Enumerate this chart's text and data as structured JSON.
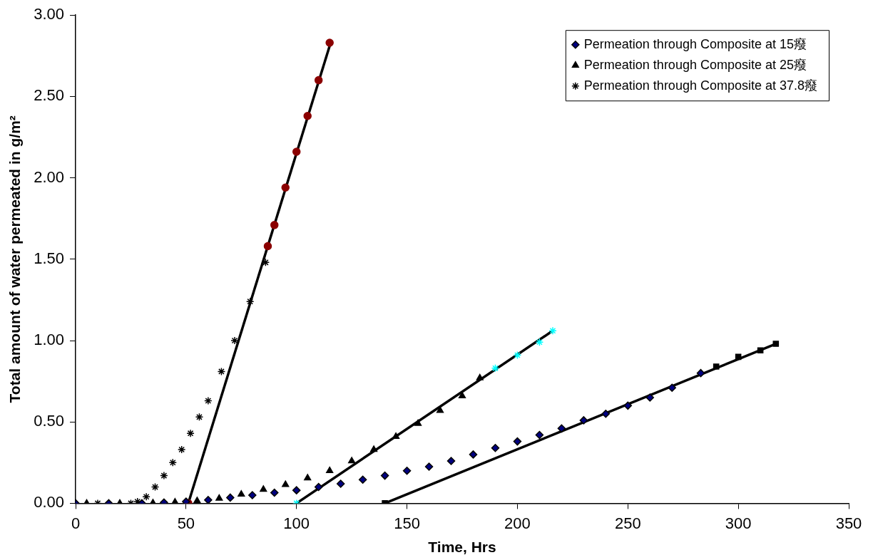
{
  "chart_data": {
    "type": "scatter",
    "xlabel": "Time, Hrs",
    "ylabel": "Total amount of water permeated in g/m²",
    "xlim": [
      0,
      350
    ],
    "xticks": [
      0,
      50,
      100,
      150,
      200,
      250,
      300,
      350
    ],
    "ylim": [
      0,
      3
    ],
    "yticks": [
      {
        "value": 0,
        "label": "0.00"
      },
      {
        "value": 0.5,
        "label": "0.50"
      },
      {
        "value": 1,
        "label": "1.00"
      },
      {
        "value": 1.5,
        "label": "1.50"
      },
      {
        "value": 2,
        "label": "2.00"
      },
      {
        "value": 2.5,
        "label": "2.50"
      },
      {
        "value": 3,
        "label": "3.00"
      }
    ],
    "grid": false,
    "legend": "top right",
    "series": [
      {
        "name": "Permeation through Composite at 15癈",
        "type": "scatter",
        "marker": "diamond",
        "color": "#000080",
        "x": [
          0,
          15,
          30,
          40,
          50,
          60,
          70,
          80,
          90,
          100,
          110,
          120,
          130,
          140,
          150,
          160,
          170,
          180,
          190,
          200,
          210,
          220,
          230,
          240,
          250,
          260,
          270,
          283
        ],
        "values": [
          0,
          0,
          0,
          0.005,
          0.01,
          0.02,
          0.035,
          0.05,
          0.065,
          0.08,
          0.1,
          0.12,
          0.145,
          0.17,
          0.2,
          0.225,
          0.26,
          0.3,
          0.34,
          0.38,
          0.42,
          0.46,
          0.51,
          0.55,
          0.6,
          0.65,
          0.71,
          0.8
        ]
      },
      {
        "name": "Permeation through Composite at 25癈",
        "type": "scatter",
        "marker": "triangle",
        "color": "#000000",
        "x": [
          5,
          20,
          35,
          45,
          55,
          65,
          75,
          85,
          95,
          105,
          115,
          125,
          135,
          145,
          155,
          165,
          175,
          183
        ],
        "values": [
          0,
          0,
          0.002,
          0.007,
          0.015,
          0.03,
          0.055,
          0.085,
          0.115,
          0.155,
          0.2,
          0.26,
          0.33,
          0.41,
          0.49,
          0.57,
          0.66,
          0.77
        ]
      },
      {
        "name": "Permeation through Composite at 37.8癈",
        "type": "scatter",
        "marker": "cross",
        "color": "#000000",
        "x": [
          10,
          25,
          28,
          32,
          36,
          40,
          44,
          48,
          52,
          56,
          60,
          66,
          72,
          79,
          86
        ],
        "values": [
          0,
          0,
          0.01,
          0.04,
          0.1,
          0.17,
          0.25,
          0.33,
          0.43,
          0.53,
          0.63,
          0.81,
          1.0,
          1.24,
          1.48
        ]
      },
      {
        "type": "scatter",
        "marker": "square",
        "color": "#000000",
        "x": [
          140,
          290,
          300,
          310,
          317
        ],
        "values": [
          0,
          0.84,
          0.9,
          0.94,
          0.98
        ]
      },
      {
        "type": "scatter",
        "marker": "cross",
        "color": "#00ffff",
        "x": [
          100,
          190,
          200,
          210,
          216
        ],
        "values": [
          0,
          0.83,
          0.91,
          0.99,
          1.06
        ]
      },
      {
        "type": "scatter",
        "marker": "circle",
        "color": "#8b0000",
        "x": [
          51,
          87,
          90,
          95,
          100,
          105,
          110,
          115
        ],
        "values": [
          0,
          1.58,
          1.71,
          1.94,
          2.16,
          2.38,
          2.6,
          2.83
        ]
      },
      {
        "type": "line",
        "marker": "none",
        "line_style": "solid",
        "color": "#000000",
        "x": [
          140,
          317
        ],
        "values": [
          0,
          0.98
        ]
      },
      {
        "type": "line",
        "marker": "none",
        "line_style": "solid",
        "color": "#000000",
        "x": [
          100,
          216
        ],
        "values": [
          0,
          1.06
        ]
      },
      {
        "type": "line",
        "marker": "none",
        "line_style": "solid",
        "color": "#000000",
        "x": [
          51,
          115
        ],
        "values": [
          0,
          2.81
        ]
      }
    ]
  }
}
